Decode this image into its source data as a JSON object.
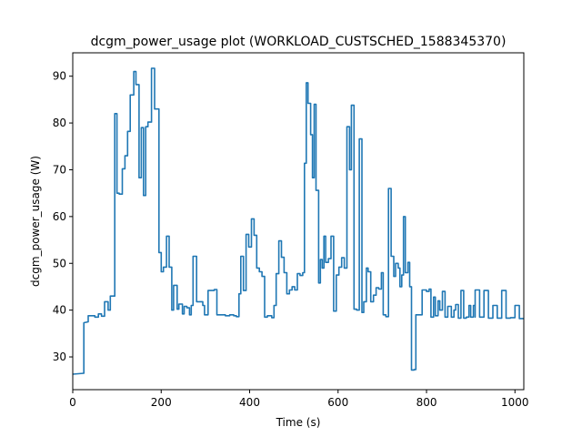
{
  "chart_data": {
    "type": "line",
    "title": "dcgm_power_usage plot (WORKLOAD_CUSTSCHED_1588345370)",
    "xlabel": "Time (s)",
    "ylabel": "dcgm_power_usage (W)",
    "xlim": [
      0,
      1020
    ],
    "ylim": [
      23,
      95
    ],
    "x_ticks": [
      0,
      200,
      400,
      600,
      800,
      1000
    ],
    "y_ticks": [
      30,
      40,
      50,
      60,
      70,
      80,
      90
    ],
    "grid": false,
    "series": [
      {
        "color": "#1f77b4",
        "points": [
          [
            0,
            26.3
          ],
          [
            25,
            26.5
          ],
          [
            25,
            37.3
          ],
          [
            35,
            37.5
          ],
          [
            35,
            38.8
          ],
          [
            50,
            38.8
          ],
          [
            50,
            38.5
          ],
          [
            58,
            38.5
          ],
          [
            58,
            39.2
          ],
          [
            65,
            39.2
          ],
          [
            65,
            38.7
          ],
          [
            72,
            38.7
          ],
          [
            72,
            41.8
          ],
          [
            80,
            41.8
          ],
          [
            80,
            40
          ],
          [
            85,
            40
          ],
          [
            85,
            43
          ],
          [
            95,
            43
          ],
          [
            95,
            82
          ],
          [
            100,
            82
          ],
          [
            100,
            65
          ],
          [
            105,
            65
          ],
          [
            105,
            64.8
          ],
          [
            112,
            64.8
          ],
          [
            112,
            70.2
          ],
          [
            118,
            70.2
          ],
          [
            118,
            73
          ],
          [
            124,
            73
          ],
          [
            124,
            78.2
          ],
          [
            130,
            78.2
          ],
          [
            130,
            86
          ],
          [
            138,
            86
          ],
          [
            138,
            91
          ],
          [
            143,
            91
          ],
          [
            143,
            88.2
          ],
          [
            150,
            88.2
          ],
          [
            150,
            68.3
          ],
          [
            155,
            68.3
          ],
          [
            155,
            79
          ],
          [
            160,
            79
          ],
          [
            160,
            64.5
          ],
          [
            165,
            64.5
          ],
          [
            165,
            79.2
          ],
          [
            170,
            79.2
          ],
          [
            170,
            80.2
          ],
          [
            178,
            80.2
          ],
          [
            178,
            91.7
          ],
          [
            185,
            91.7
          ],
          [
            185,
            83
          ],
          [
            195,
            83
          ],
          [
            195,
            52.3
          ],
          [
            200,
            52.3
          ],
          [
            200,
            48.2
          ],
          [
            205,
            48.2
          ],
          [
            205,
            49.2
          ],
          [
            212,
            49.2
          ],
          [
            212,
            55.8
          ],
          [
            218,
            55.8
          ],
          [
            218,
            49.2
          ],
          [
            224,
            49.2
          ],
          [
            224,
            40
          ],
          [
            228,
            40
          ],
          [
            228,
            45.3
          ],
          [
            236,
            45.3
          ],
          [
            236,
            40.2
          ],
          [
            240,
            40.2
          ],
          [
            240,
            41.3
          ],
          [
            248,
            41.3
          ],
          [
            248,
            39.2
          ],
          [
            252,
            39.2
          ],
          [
            252,
            40.8
          ],
          [
            258,
            40.8
          ],
          [
            258,
            40.5
          ],
          [
            264,
            40.5
          ],
          [
            264,
            39
          ],
          [
            268,
            39
          ],
          [
            268,
            41
          ],
          [
            272,
            41
          ],
          [
            272,
            51.5
          ],
          [
            280,
            51.5
          ],
          [
            280,
            41.8
          ],
          [
            286,
            41.8
          ],
          [
            286,
            41.8
          ],
          [
            294,
            41.8
          ],
          [
            294,
            41
          ],
          [
            298,
            41
          ],
          [
            298,
            39
          ],
          [
            306,
            39
          ],
          [
            306,
            44.2
          ],
          [
            320,
            44.2
          ],
          [
            320,
            44.4
          ],
          [
            326,
            44.4
          ],
          [
            326,
            39
          ],
          [
            345,
            39
          ],
          [
            345,
            38.8
          ],
          [
            355,
            38.8
          ],
          [
            355,
            39
          ],
          [
            364,
            39
          ],
          [
            364,
            38.8
          ],
          [
            370,
            38.8
          ],
          [
            370,
            38.6
          ],
          [
            376,
            38.6
          ],
          [
            376,
            43.5
          ],
          [
            380,
            43.5
          ],
          [
            380,
            51.5
          ],
          [
            386,
            51.5
          ],
          [
            386,
            44.2
          ],
          [
            392,
            44.2
          ],
          [
            392,
            56.2
          ],
          [
            398,
            56.2
          ],
          [
            398,
            53.5
          ],
          [
            404,
            53.5
          ],
          [
            404,
            59.5
          ],
          [
            410,
            59.5
          ],
          [
            410,
            56
          ],
          [
            416,
            56
          ],
          [
            416,
            49
          ],
          [
            422,
            49
          ],
          [
            422,
            48.2
          ],
          [
            428,
            48.2
          ],
          [
            428,
            47.2
          ],
          [
            434,
            47.2
          ],
          [
            434,
            38.5
          ],
          [
            440,
            38.5
          ],
          [
            440,
            38.8
          ],
          [
            450,
            38.8
          ],
          [
            450,
            38.4
          ],
          [
            455,
            38.4
          ],
          [
            455,
            41
          ],
          [
            460,
            41
          ],
          [
            460,
            47.8
          ],
          [
            466,
            47.8
          ],
          [
            466,
            54.8
          ],
          [
            472,
            54.8
          ],
          [
            472,
            51.3
          ],
          [
            478,
            51.3
          ],
          [
            478,
            48
          ],
          [
            484,
            48
          ],
          [
            484,
            43.5
          ],
          [
            490,
            43.5
          ],
          [
            490,
            44.3
          ],
          [
            496,
            44.3
          ],
          [
            496,
            45
          ],
          [
            502,
            45
          ],
          [
            502,
            44.3
          ],
          [
            508,
            44.3
          ],
          [
            508,
            47.8
          ],
          [
            514,
            47.8
          ],
          [
            514,
            47.4
          ],
          [
            520,
            47.4
          ],
          [
            520,
            48
          ],
          [
            524,
            48
          ],
          [
            524,
            71.4
          ],
          [
            528,
            71.4
          ],
          [
            528,
            88.6
          ],
          [
            532,
            88.6
          ],
          [
            532,
            84.2
          ],
          [
            538,
            84.2
          ],
          [
            538,
            77.5
          ],
          [
            542,
            77.5
          ],
          [
            542,
            68.3
          ],
          [
            546,
            68.3
          ],
          [
            546,
            84
          ],
          [
            550,
            84
          ],
          [
            550,
            65.6
          ],
          [
            556,
            65.6
          ],
          [
            556,
            45.8
          ],
          [
            560,
            45.8
          ],
          [
            560,
            50.8
          ],
          [
            564,
            50.8
          ],
          [
            564,
            49
          ],
          [
            568,
            49
          ],
          [
            568,
            55.8
          ],
          [
            572,
            55.8
          ],
          [
            572,
            50.2
          ],
          [
            578,
            50.2
          ],
          [
            578,
            51
          ],
          [
            584,
            51
          ],
          [
            584,
            55.8
          ],
          [
            590,
            55.8
          ],
          [
            590,
            39.8
          ],
          [
            596,
            39.8
          ],
          [
            596,
            47.5
          ],
          [
            602,
            47.5
          ],
          [
            602,
            49.2
          ],
          [
            608,
            49.2
          ],
          [
            608,
            51.2
          ],
          [
            614,
            51.2
          ],
          [
            614,
            49
          ],
          [
            620,
            49
          ],
          [
            620,
            79.2
          ],
          [
            626,
            79.2
          ],
          [
            626,
            70
          ],
          [
            630,
            70
          ],
          [
            630,
            83.8
          ],
          [
            636,
            83.8
          ],
          [
            636,
            40.2
          ],
          [
            642,
            40.2
          ],
          [
            642,
            40
          ],
          [
            648,
            40
          ],
          [
            648,
            76.6
          ],
          [
            654,
            76.6
          ],
          [
            654,
            39.5
          ],
          [
            658,
            39.5
          ],
          [
            658,
            41.8
          ],
          [
            664,
            41.8
          ],
          [
            664,
            49
          ],
          [
            668,
            49
          ],
          [
            668,
            48.2
          ],
          [
            674,
            48.2
          ],
          [
            674,
            41.8
          ],
          [
            680,
            41.8
          ],
          [
            680,
            43.2
          ],
          [
            686,
            43.2
          ],
          [
            686,
            44.8
          ],
          [
            692,
            44.8
          ],
          [
            692,
            44.5
          ],
          [
            698,
            44.5
          ],
          [
            698,
            48
          ],
          [
            702,
            48
          ],
          [
            702,
            39
          ],
          [
            708,
            39
          ],
          [
            708,
            38.6
          ],
          [
            714,
            38.6
          ],
          [
            714,
            66
          ],
          [
            720,
            66
          ],
          [
            720,
            51.5
          ],
          [
            726,
            51.5
          ],
          [
            726,
            47.2
          ],
          [
            730,
            47.2
          ],
          [
            730,
            50
          ],
          [
            736,
            50
          ],
          [
            736,
            49
          ],
          [
            740,
            49
          ],
          [
            740,
            45
          ],
          [
            744,
            45
          ],
          [
            744,
            47.5
          ],
          [
            748,
            47.5
          ],
          [
            748,
            60
          ],
          [
            752,
            60
          ],
          [
            752,
            48
          ],
          [
            758,
            48
          ],
          [
            758,
            50.2
          ],
          [
            762,
            50.2
          ],
          [
            762,
            45
          ],
          [
            766,
            45
          ],
          [
            766,
            27.2
          ],
          [
            772,
            27.2
          ],
          [
            772,
            27.3
          ],
          [
            776,
            27.3
          ],
          [
            776,
            39
          ],
          [
            790,
            39
          ],
          [
            790,
            44.3
          ],
          [
            800,
            44.3
          ],
          [
            800,
            44
          ],
          [
            806,
            44
          ],
          [
            806,
            44.5
          ],
          [
            810,
            44.5
          ],
          [
            810,
            38.5
          ],
          [
            816,
            38.5
          ],
          [
            816,
            42.8
          ],
          [
            820,
            42.8
          ],
          [
            820,
            38.8
          ],
          [
            826,
            38.8
          ],
          [
            826,
            42
          ],
          [
            830,
            42
          ],
          [
            830,
            40
          ],
          [
            836,
            40
          ],
          [
            836,
            44
          ],
          [
            842,
            44
          ],
          [
            842,
            38.5
          ],
          [
            848,
            38.5
          ],
          [
            848,
            40.8
          ],
          [
            856,
            40.8
          ],
          [
            856,
            38.5
          ],
          [
            862,
            38.5
          ],
          [
            862,
            40
          ],
          [
            866,
            40
          ],
          [
            866,
            41.2
          ],
          [
            872,
            41.2
          ],
          [
            872,
            38.3
          ],
          [
            878,
            38.3
          ],
          [
            878,
            44.2
          ],
          [
            884,
            44.2
          ],
          [
            884,
            38.3
          ],
          [
            890,
            38.3
          ],
          [
            890,
            38.5
          ],
          [
            896,
            38.5
          ],
          [
            896,
            41
          ],
          [
            900,
            41
          ],
          [
            900,
            38.5
          ],
          [
            906,
            38.5
          ],
          [
            906,
            41
          ],
          [
            910,
            41
          ],
          [
            910,
            38.5
          ],
          [
            910,
            44.3
          ],
          [
            920,
            44.3
          ],
          [
            920,
            38.5
          ],
          [
            930,
            38.5
          ],
          [
            930,
            44.2
          ],
          [
            940,
            44.2
          ],
          [
            940,
            38.3
          ],
          [
            950,
            38.3
          ],
          [
            950,
            41
          ],
          [
            960,
            41
          ],
          [
            960,
            38.3
          ],
          [
            970,
            38.3
          ],
          [
            970,
            44.2
          ],
          [
            980,
            44.2
          ],
          [
            980,
            38.3
          ],
          [
            990,
            38.3
          ],
          [
            990,
            38.4
          ],
          [
            1000,
            38.4
          ],
          [
            1000,
            41
          ],
          [
            1010,
            41
          ],
          [
            1010,
            38.2
          ],
          [
            1020,
            38.2
          ]
        ]
      }
    ]
  }
}
